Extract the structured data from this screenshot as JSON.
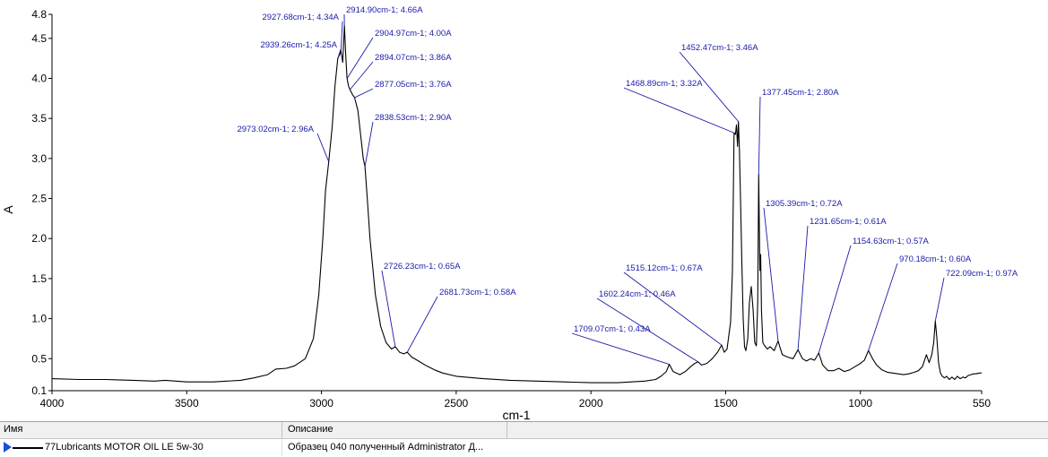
{
  "chart_data": {
    "type": "line",
    "title": "",
    "xlabel": "cm-1",
    "ylabel": "A",
    "xlim": [
      4000,
      550
    ],
    "ylim": [
      0.1,
      4.8
    ],
    "x_reversed": true,
    "grid": false,
    "x_ticks": [
      4000,
      3500,
      3000,
      2500,
      2000,
      1500,
      1000,
      550
    ],
    "x_tick_labels": [
      "4000",
      "3500",
      "3000",
      "2500",
      "2000",
      "1500",
      "1000",
      "550"
    ],
    "y_ticks": [
      0.1,
      0.5,
      1.0,
      1.5,
      2.0,
      2.5,
      3.0,
      3.5,
      4.0,
      4.5,
      4.8
    ],
    "y_tick_labels": [
      "0.1",
      "0.5",
      "1.0",
      "1.5",
      "2.0",
      "2.5",
      "3.0",
      "3.5",
      "4.0",
      "4.5",
      "4.8"
    ],
    "line_color": "#000000",
    "annotation_color": "#1a1aaa",
    "series": [
      {
        "x": [
          4000,
          3900,
          3800,
          3700,
          3620,
          3580,
          3500,
          3400,
          3300,
          3250,
          3200,
          3170,
          3130,
          3100,
          3060,
          3030,
          3010,
          2995,
          2985,
          2973,
          2960,
          2950,
          2939.26,
          2932,
          2927.68,
          2921,
          2914.9,
          2910,
          2904.97,
          2899,
          2894.07,
          2885,
          2877.05,
          2865,
          2855,
          2845,
          2838.53,
          2830,
          2820,
          2800,
          2780,
          2760,
          2740,
          2726.23,
          2710,
          2695,
          2681.73,
          2665,
          2640,
          2610,
          2580,
          2550,
          2500,
          2400,
          2300,
          2200,
          2100,
          2000,
          1900,
          1850,
          1800,
          1760,
          1740,
          1720,
          1709.07,
          1695,
          1670,
          1650,
          1630,
          1615,
          1602.24,
          1590,
          1570,
          1550,
          1530,
          1515.12,
          1505,
          1495,
          1490,
          1482,
          1475,
          1468.89,
          1464,
          1460,
          1456,
          1452.47,
          1449,
          1445,
          1440,
          1435,
          1430,
          1425,
          1418,
          1412,
          1405,
          1398,
          1392,
          1386,
          1381,
          1377.45,
          1373,
          1370,
          1367,
          1362,
          1355,
          1345,
          1335,
          1320,
          1305.39,
          1290,
          1270,
          1250,
          1231.65,
          1215,
          1200,
          1185,
          1170,
          1154.63,
          1140,
          1120,
          1100,
          1080,
          1060,
          1040,
          1020,
          1000,
          985,
          970.18,
          955,
          940,
          920,
          900,
          880,
          860,
          840,
          820,
          800,
          785,
          770,
          755,
          745,
          735,
          728,
          722.09,
          716,
          710,
          703,
          696,
          688,
          680,
          670,
          660,
          650,
          640,
          630,
          620,
          610,
          600,
          590,
          580,
          570,
          560,
          550
        ],
        "y": [
          0.25,
          0.24,
          0.24,
          0.23,
          0.22,
          0.23,
          0.21,
          0.21,
          0.23,
          0.26,
          0.3,
          0.37,
          0.38,
          0.41,
          0.5,
          0.75,
          1.3,
          2.0,
          2.6,
          2.96,
          3.4,
          3.9,
          4.25,
          4.3,
          4.34,
          4.2,
          4.66,
          4.3,
          4.0,
          3.9,
          3.86,
          3.8,
          3.76,
          3.6,
          3.3,
          3.0,
          2.9,
          2.5,
          2.0,
          1.3,
          0.9,
          0.7,
          0.62,
          0.65,
          0.58,
          0.56,
          0.58,
          0.52,
          0.47,
          0.41,
          0.36,
          0.32,
          0.28,
          0.25,
          0.23,
          0.22,
          0.21,
          0.2,
          0.2,
          0.21,
          0.22,
          0.24,
          0.28,
          0.34,
          0.43,
          0.34,
          0.3,
          0.34,
          0.4,
          0.44,
          0.46,
          0.42,
          0.44,
          0.5,
          0.58,
          0.67,
          0.58,
          0.62,
          0.75,
          0.95,
          1.6,
          3.32,
          3.3,
          3.42,
          3.15,
          3.46,
          3.1,
          2.5,
          1.7,
          1.0,
          0.65,
          0.6,
          0.75,
          1.2,
          1.4,
          1.1,
          0.7,
          0.66,
          1.2,
          2.8,
          1.6,
          1.8,
          1.1,
          0.7,
          0.66,
          0.62,
          0.65,
          0.6,
          0.72,
          0.55,
          0.52,
          0.5,
          0.61,
          0.5,
          0.47,
          0.5,
          0.48,
          0.57,
          0.42,
          0.35,
          0.35,
          0.38,
          0.34,
          0.36,
          0.4,
          0.44,
          0.48,
          0.6,
          0.5,
          0.42,
          0.36,
          0.33,
          0.32,
          0.31,
          0.3,
          0.31,
          0.33,
          0.35,
          0.4,
          0.55,
          0.45,
          0.55,
          0.7,
          0.97,
          0.75,
          0.45,
          0.32,
          0.28,
          0.26,
          0.28,
          0.24,
          0.27,
          0.24,
          0.28,
          0.25,
          0.27,
          0.26,
          0.29,
          0.3,
          0.31,
          0.31,
          0.32,
          0.32
        ]
      }
    ],
    "annotations": [
      {
        "label": "2914.90cm-1; 4.66A",
        "x": 2914.9,
        "y": 4.66
      },
      {
        "label": "2927.68cm-1; 4.34A",
        "x": 2927.68,
        "y": 4.34
      },
      {
        "label": "2939.26cm-1; 4.25A",
        "x": 2939.26,
        "y": 4.25
      },
      {
        "label": "2904.97cm-1; 4.00A",
        "x": 2904.97,
        "y": 4.0
      },
      {
        "label": "2894.07cm-1; 3.86A",
        "x": 2894.07,
        "y": 3.86
      },
      {
        "label": "2877.05cm-1; 3.76A",
        "x": 2877.05,
        "y": 3.76
      },
      {
        "label": "2838.53cm-1; 2.90A",
        "x": 2838.53,
        "y": 2.9
      },
      {
        "label": "2973.02cm-1; 2.96A",
        "x": 2973.02,
        "y": 2.96
      },
      {
        "label": "2726.23cm-1; 0.65A",
        "x": 2726.23,
        "y": 0.65
      },
      {
        "label": "2681.73cm-1; 0.58A",
        "x": 2681.73,
        "y": 0.58
      },
      {
        "label": "1452.47cm-1; 3.46A",
        "x": 1452.47,
        "y": 3.46
      },
      {
        "label": "1468.89cm-1; 3.32A",
        "x": 1468.89,
        "y": 3.32
      },
      {
        "label": "1377.45cm-1; 2.80A",
        "x": 1377.45,
        "y": 2.8
      },
      {
        "label": "1305.39cm-1; 0.72A",
        "x": 1305.39,
        "y": 0.72
      },
      {
        "label": "1231.65cm-1; 0.61A",
        "x": 1231.65,
        "y": 0.61
      },
      {
        "label": "1154.63cm-1; 0.57A",
        "x": 1154.63,
        "y": 0.57
      },
      {
        "label": "970.18cm-1; 0.60A",
        "x": 970.18,
        "y": 0.6
      },
      {
        "label": "722.09cm-1; 0.97A",
        "x": 722.09,
        "y": 0.97
      },
      {
        "label": "1515.12cm-1; 0.67A",
        "x": 1515.12,
        "y": 0.67
      },
      {
        "label": "1602.24cm-1; 0.46A",
        "x": 1602.24,
        "y": 0.46
      },
      {
        "label": "1709.07cm-1; 0.43A",
        "x": 1709.07,
        "y": 0.43
      }
    ]
  },
  "legend_table": {
    "col_name": "Имя",
    "col_desc": "Описание",
    "row_name": "77Lubricants MOTOR OIL LE 5w-30",
    "row_desc": "Образец 040 полученный Administrator Д..."
  }
}
